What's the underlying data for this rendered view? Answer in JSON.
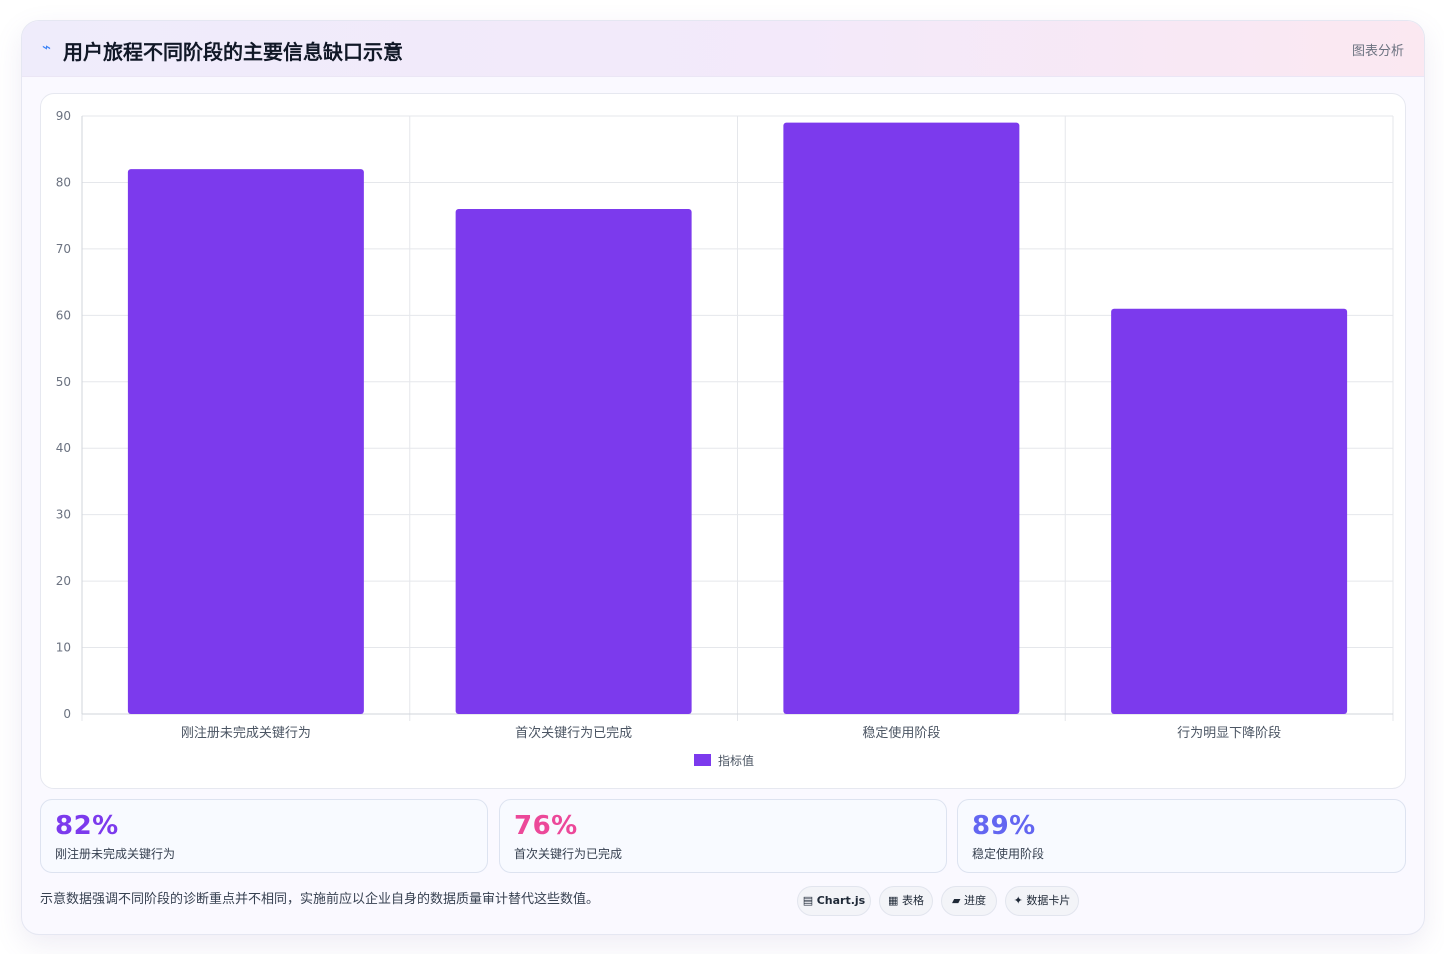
{
  "header": {
    "icon": "trend-icon",
    "title": "用户旅程不同阶段的主要信息缺口示意",
    "tag": "图表分析"
  },
  "chart_data": {
    "type": "bar",
    "categories": [
      "刚注册未完成关键行为",
      "首次关键行为已完成",
      "稳定使用阶段",
      "行为明显下降阶段"
    ],
    "series": [
      {
        "name": "指标值",
        "values": [
          82,
          76,
          89,
          61
        ],
        "color": "#7c3aed"
      }
    ],
    "ylim": [
      0,
      90
    ],
    "yticks": [
      0,
      10,
      20,
      30,
      40,
      50,
      60,
      70,
      80,
      90
    ],
    "grid": true,
    "legend_position": "bottom"
  },
  "stats": [
    {
      "value": "82%",
      "label": "刚注册未完成关键行为",
      "color": "#7c3aed"
    },
    {
      "value": "76%",
      "label": "首次关键行为已完成",
      "color": "#ec4899"
    },
    {
      "value": "89%",
      "label": "稳定使用阶段",
      "color": "#6366f1"
    }
  ],
  "footnote": "示意数据强调不同阶段的诊断重点并不相同，实施前应以企业自身的数据质量审计替代这些数值。",
  "chips": [
    {
      "icon": "▤",
      "label": "Chart.js"
    },
    {
      "icon": "▦",
      "label": "表格"
    },
    {
      "icon": "▰",
      "label": "进度"
    },
    {
      "icon": "✦",
      "label": "数据卡片"
    }
  ]
}
